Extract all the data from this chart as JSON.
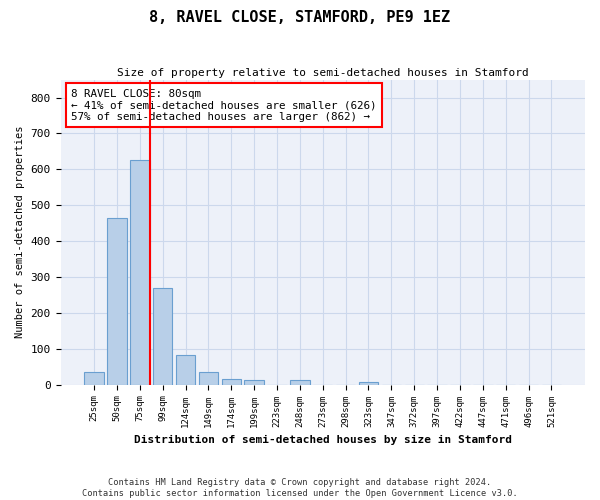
{
  "title": "8, RAVEL CLOSE, STAMFORD, PE9 1EZ",
  "subtitle": "Size of property relative to semi-detached houses in Stamford",
  "xlabel": "Distribution of semi-detached houses by size in Stamford",
  "ylabel": "Number of semi-detached properties",
  "categories": [
    "25sqm",
    "50sqm",
    "75sqm",
    "99sqm",
    "124sqm",
    "149sqm",
    "174sqm",
    "199sqm",
    "223sqm",
    "248sqm",
    "273sqm",
    "298sqm",
    "323sqm",
    "347sqm",
    "372sqm",
    "397sqm",
    "422sqm",
    "447sqm",
    "471sqm",
    "496sqm",
    "521sqm"
  ],
  "values": [
    35,
    465,
    625,
    268,
    82,
    34,
    15,
    12,
    0,
    12,
    0,
    0,
    8,
    0,
    0,
    0,
    0,
    0,
    0,
    0,
    0
  ],
  "bar_color": "#b8cfe8",
  "bar_edge_color": "#6a9fd0",
  "red_line_bin": 2,
  "annotation_text": "8 RAVEL CLOSE: 80sqm\n← 41% of semi-detached houses are smaller (626)\n57% of semi-detached houses are larger (862) →",
  "footer": "Contains HM Land Registry data © Crown copyright and database right 2024.\nContains public sector information licensed under the Open Government Licence v3.0.",
  "ylim": [
    0,
    850
  ],
  "yticks": [
    0,
    100,
    200,
    300,
    400,
    500,
    600,
    700,
    800
  ],
  "grid_color": "#ccd8ec",
  "background_color": "#edf1f9"
}
